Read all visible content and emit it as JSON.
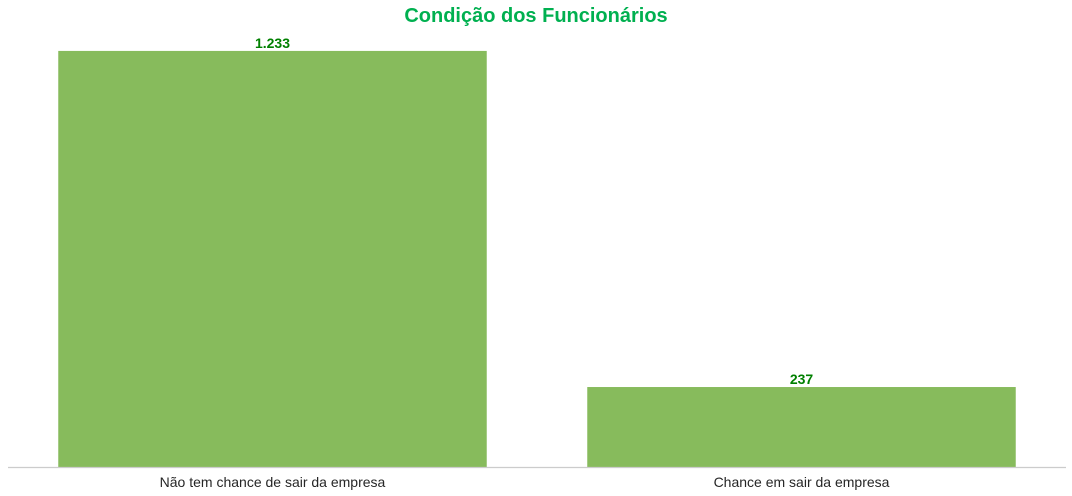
{
  "chart_data": {
    "type": "bar",
    "title": "Condição dos Funcionários",
    "categories": [
      "Não tem chance de sair da empresa",
      "Chance em sair da empresa"
    ],
    "values": [
      1233,
      237
    ],
    "data_labels": [
      "1.233",
      "237"
    ],
    "xlabel": "",
    "ylabel": "",
    "ylim": [
      0,
      1295
    ],
    "grid": false,
    "legend": "none",
    "colors": {
      "bar": "#87bb5c",
      "title": "#00b050",
      "data_label": "#008000",
      "axis": "#cccccc"
    }
  }
}
